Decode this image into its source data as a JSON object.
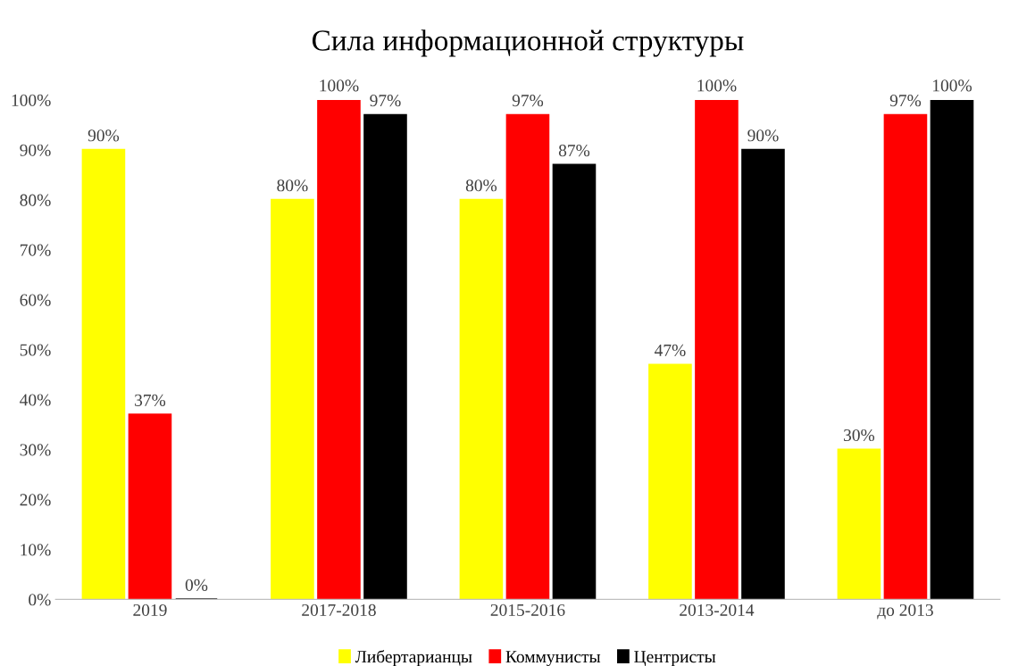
{
  "chart_data": {
    "type": "bar",
    "title": "Сила информационной структуры",
    "categories": [
      "2019",
      "2017-2018",
      "2015-2016",
      "2013-2014",
      "до 2013"
    ],
    "series": [
      {
        "name": "Либертарианцы",
        "color": "#ffff00",
        "values": [
          90,
          80,
          80,
          47,
          30
        ],
        "value_labels": [
          "90%",
          "80%",
          "80%",
          "47%",
          "30%"
        ]
      },
      {
        "name": "Коммунисты",
        "color": "#ff0000",
        "values": [
          37,
          100,
          97,
          100,
          97
        ],
        "value_labels": [
          "37%",
          "100%",
          "97%",
          "100%",
          "97%"
        ]
      },
      {
        "name": "Центристы",
        "color": "#000000",
        "values": [
          0,
          97,
          87,
          90,
          100
        ],
        "value_labels": [
          "0%",
          "97%",
          "87%",
          "90%",
          "100%"
        ]
      }
    ],
    "ylim": [
      0,
      100
    ],
    "yticks": [
      {
        "value": 0,
        "label": "0%"
      },
      {
        "value": 10,
        "label": "10%"
      },
      {
        "value": 20,
        "label": "20%"
      },
      {
        "value": 30,
        "label": "30%"
      },
      {
        "value": 40,
        "label": "40%"
      },
      {
        "value": 50,
        "label": "50%"
      },
      {
        "value": 60,
        "label": "60%"
      },
      {
        "value": 70,
        "label": "70%"
      },
      {
        "value": 80,
        "label": "80%"
      },
      {
        "value": 90,
        "label": "90%"
      },
      {
        "value": 100,
        "label": "100%"
      }
    ],
    "grid": false,
    "legend": "bottom"
  }
}
